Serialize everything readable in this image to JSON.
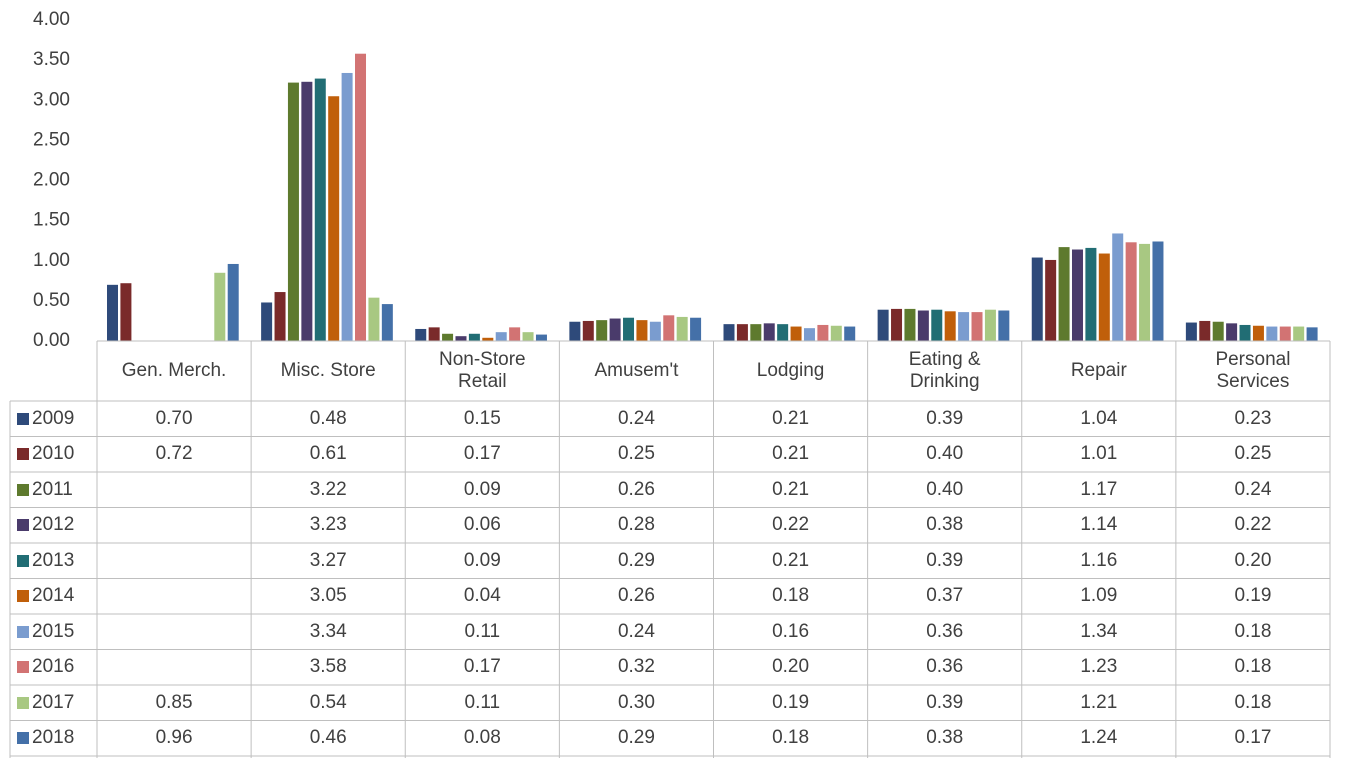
{
  "chart_data": {
    "type": "bar",
    "categories": [
      "Gen. Merch.",
      "Misc. Store",
      "Non-Store Retail",
      "Amusem't",
      "Lodging",
      "Eating & Drinking",
      "Repair",
      "Personal Services"
    ],
    "series": [
      {
        "name": "2009",
        "color": "#2e4a7a",
        "values": [
          0.7,
          0.48,
          0.15,
          0.24,
          0.21,
          0.39,
          1.04,
          0.23
        ],
        "value_labels": [
          "0.70",
          "0.48",
          "0.15",
          "0.24",
          "0.21",
          "0.39",
          "1.04",
          "0.23"
        ]
      },
      {
        "name": "2010",
        "color": "#7a2a2a",
        "values": [
          0.72,
          0.61,
          0.17,
          0.25,
          0.21,
          0.4,
          1.01,
          0.25
        ],
        "value_labels": [
          "0.72",
          "0.61",
          "0.17",
          "0.25",
          "0.21",
          "0.40",
          "1.01",
          "0.25"
        ]
      },
      {
        "name": "2011",
        "color": "#5e7a2e",
        "values": [
          null,
          3.22,
          0.09,
          0.26,
          0.21,
          0.4,
          1.17,
          0.24
        ],
        "value_labels": [
          null,
          "3.22",
          "0.09",
          "0.26",
          "0.21",
          "0.40",
          "1.17",
          "0.24"
        ]
      },
      {
        "name": "2012",
        "color": "#4a3b6b",
        "values": [
          null,
          3.23,
          0.06,
          0.28,
          0.22,
          0.38,
          1.14,
          0.22
        ],
        "value_labels": [
          null,
          "3.23",
          "0.06",
          "0.28",
          "0.22",
          "0.38",
          "1.14",
          "0.22"
        ]
      },
      {
        "name": "2013",
        "color": "#216d74",
        "values": [
          null,
          3.27,
          0.09,
          0.29,
          0.21,
          0.39,
          1.16,
          0.2
        ],
        "value_labels": [
          null,
          "3.27",
          "0.09",
          "0.29",
          "0.21",
          "0.39",
          "1.16",
          "0.20"
        ]
      },
      {
        "name": "2014",
        "color": "#c05f0a",
        "values": [
          null,
          3.05,
          0.04,
          0.26,
          0.18,
          0.37,
          1.09,
          0.19
        ],
        "value_labels": [
          null,
          "3.05",
          "0.04",
          "0.26",
          "0.18",
          "0.37",
          "1.09",
          "0.19"
        ]
      },
      {
        "name": "2015",
        "color": "#7a9ccf",
        "values": [
          null,
          3.34,
          0.11,
          0.24,
          0.16,
          0.36,
          1.34,
          0.18
        ],
        "value_labels": [
          null,
          "3.34",
          "0.11",
          "0.24",
          "0.16",
          "0.36",
          "1.34",
          "0.18"
        ]
      },
      {
        "name": "2016",
        "color": "#d27373",
        "values": [
          null,
          3.58,
          0.17,
          0.32,
          0.2,
          0.36,
          1.23,
          0.18
        ],
        "value_labels": [
          null,
          "3.58",
          "0.17",
          "0.32",
          "0.20",
          "0.36",
          "1.23",
          "0.18"
        ]
      },
      {
        "name": "2017",
        "color": "#a8c882",
        "values": [
          0.85,
          0.54,
          0.11,
          0.3,
          0.19,
          0.39,
          1.21,
          0.18
        ],
        "value_labels": [
          "0.85",
          "0.54",
          "0.11",
          "0.30",
          "0.19",
          "0.39",
          "1.21",
          "0.18"
        ]
      },
      {
        "name": "2018",
        "color": "#4470a8",
        "values": [
          0.96,
          0.46,
          0.08,
          0.29,
          0.18,
          0.38,
          1.24,
          0.17
        ],
        "value_labels": [
          "0.96",
          "0.46",
          "0.08",
          "0.29",
          "0.18",
          "0.38",
          "1.24",
          "0.17"
        ]
      }
    ],
    "ylim": [
      0,
      4
    ],
    "yticks": [
      {
        "value": 0,
        "label": "0.00"
      },
      {
        "value": 0.5,
        "label": "0.50"
      },
      {
        "value": 1,
        "label": "1.00"
      },
      {
        "value": 1.5,
        "label": "1.50"
      },
      {
        "value": 2,
        "label": "2.00"
      },
      {
        "value": 2.5,
        "label": "2.50"
      },
      {
        "value": 3,
        "label": "3.00"
      },
      {
        "value": 3.5,
        "label": "3.50"
      },
      {
        "value": 4,
        "label": "4.00"
      }
    ],
    "grid": false
  }
}
